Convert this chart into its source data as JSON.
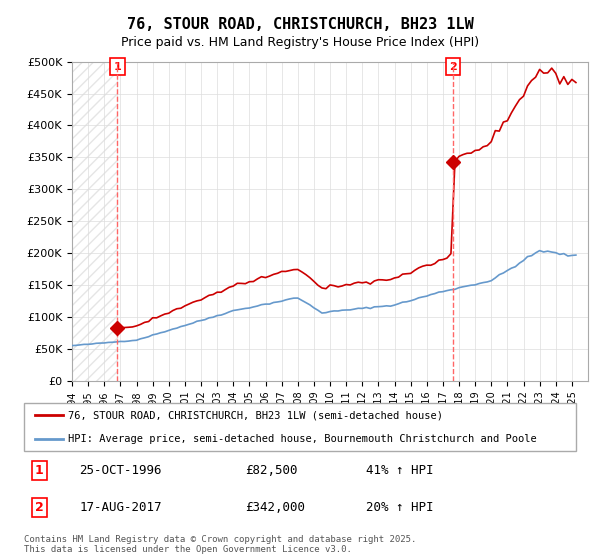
{
  "title": "76, STOUR ROAD, CHRISTCHURCH, BH23 1LW",
  "subtitle": "Price paid vs. HM Land Registry's House Price Index (HPI)",
  "legend_line1": "76, STOUR ROAD, CHRISTCHURCH, BH23 1LW (semi-detached house)",
  "legend_line2": "HPI: Average price, semi-detached house, Bournemouth Christchurch and Poole",
  "annotation1_label": "1",
  "annotation1_date": "25-OCT-1996",
  "annotation1_price": "£82,500",
  "annotation1_hpi": "41% ↑ HPI",
  "annotation2_label": "2",
  "annotation2_date": "17-AUG-2017",
  "annotation2_price": "£342,000",
  "annotation2_hpi": "20% ↑ HPI",
  "footer": "Contains HM Land Registry data © Crown copyright and database right 2025.\nThis data is licensed under the Open Government Licence v3.0.",
  "price_color": "#cc0000",
  "hpi_color": "#6699cc",
  "annotation_vline_color": "#ff6666",
  "background_color": "#ffffff",
  "plot_bg_color": "#ffffff",
  "hatch_color": "#e8e8e8",
  "ylim": [
    0,
    500000
  ],
  "yticks": [
    0,
    50000,
    100000,
    150000,
    200000,
    250000,
    300000,
    350000,
    400000,
    450000,
    500000
  ],
  "sale1_year": 1996.81,
  "sale1_price": 82500,
  "sale2_year": 2017.63,
  "sale2_price": 342000,
  "xmin": 1994,
  "xmax": 2026
}
